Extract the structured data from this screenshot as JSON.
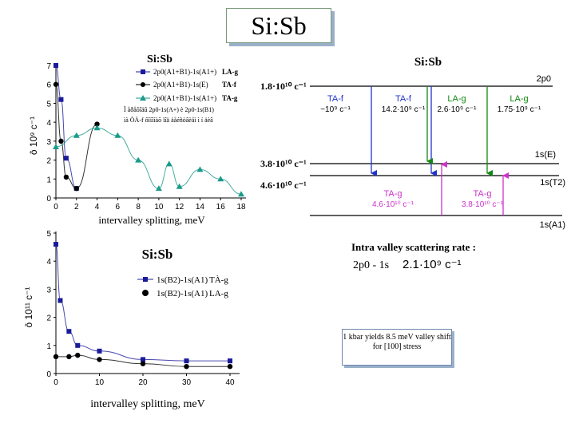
{
  "slide_title": "Si:Sb",
  "top_chart": {
    "title": "Si:Sb",
    "legend": [
      {
        "label": "2p0(A1+B1)-1s(A1+)",
        "tag": "LA-g",
        "marker": "square"
      },
      {
        "label": "2p0(A1+B1)-1s(E)",
        "tag": "TA-f",
        "marker": "circle"
      },
      {
        "label": "2p0(A1+B1)-1s(A1+)",
        "tag": "TA-g",
        "marker": "triangle"
      }
    ],
    "legend_note_1": "Ï åðåõîäû 2p0-1s(A+) è 2p0-1s(B1)",
    "legend_note_2": "ìà ÒÀ-f ôîíîíàõ ïîä äåéñòâèåì ì í äèâ",
    "xlabel": "intervalley splitting, meV",
    "ylabel": "ô 10⁹ c⁻¹",
    "x_ticks": [
      "0",
      "2",
      "4",
      "6",
      "8",
      "10",
      "12",
      "14",
      "16",
      "18"
    ],
    "y_ticks": [
      "0",
      "1",
      "2",
      "3",
      "4",
      "5",
      "6",
      "7"
    ]
  },
  "energy_diagram": {
    "title": "Si:Sb",
    "levels": {
      "top": "2p0",
      "e": "1s(E)",
      "t2": "1s(T2)",
      "a1": "1s(A1)"
    },
    "left_values": {
      "top": "1.8·10¹⁰ c⁻¹",
      "e": "3.8·10¹⁰ c⁻¹",
      "t2": "4.6·10¹⁰ c⁻¹"
    },
    "transitions_down": [
      {
        "mode": "TA-f",
        "rate": "~10⁹ c⁻¹",
        "color": "#2233cc"
      },
      {
        "mode": "TA-f",
        "rate": "14.2·10⁹ c⁻¹",
        "color": "#2233cc"
      },
      {
        "mode": "LA-g",
        "rate": "2.6·10⁹ c⁻¹",
        "color": "#118811"
      },
      {
        "mode": "LA-g",
        "rate": "1.75·10⁹ c⁻¹",
        "color": "#118811"
      }
    ],
    "transitions_up": [
      {
        "mode": "TA-g",
        "rate": "4.6·10¹⁰ c⁻¹",
        "color": "#cc33cc"
      },
      {
        "mode": "TA-g",
        "rate": "3.8·10¹⁰ c⁻¹",
        "color": "#cc33cc"
      }
    ],
    "intra_title": "Intra valley scattering rate :",
    "intra_transition": "2p0 - 1s",
    "intra_rate": "2.1·10⁹ c⁻¹"
  },
  "bottom_chart": {
    "title": "Si:Sb",
    "legend": [
      {
        "label": "1s(B2)-1s(A1)",
        "tag": "TÀ-g",
        "marker": "square"
      },
      {
        "label": "1s(B2)-1s(A1)",
        "tag": "LA-g",
        "marker": "circle"
      }
    ],
    "xlabel": "intervalley splitting, meV",
    "ylabel": "ô 10¹¹ c⁻¹",
    "x_ticks": [
      "0",
      "10",
      "20",
      "30",
      "40"
    ],
    "y_ticks": [
      "0",
      "1",
      "2",
      "3",
      "4",
      "5"
    ]
  },
  "note": "1 kbar yields 8.5 meV valley shift for [100] stress",
  "chart_data": [
    {
      "type": "scatter",
      "title": "Si:Sb",
      "xlabel": "intervalley splitting, meV",
      "ylabel": "ô 10⁹ c⁻¹",
      "xlim": [
        0,
        18
      ],
      "ylim": [
        0,
        7
      ],
      "series": [
        {
          "name": "LA-g",
          "marker": "square",
          "color": "#1a1a9a",
          "x": [
            0,
            0.5,
            1,
            2
          ],
          "y": [
            7.0,
            5.2,
            2.1,
            0.5
          ]
        },
        {
          "name": "TA-f",
          "marker": "circle",
          "color": "#000000",
          "x": [
            0,
            0.5,
            1,
            2,
            4
          ],
          "y": [
            6.0,
            3.0,
            1.1,
            0.5,
            3.9
          ]
        },
        {
          "name": "TA-g",
          "marker": "triangle",
          "color": "#1a9a8a",
          "x": [
            0,
            2,
            4,
            6,
            8,
            10,
            11,
            12,
            14,
            16,
            18
          ],
          "y": [
            2.7,
            3.3,
            3.7,
            3.3,
            2.0,
            0.5,
            1.8,
            0.6,
            1.5,
            1.0,
            0.2
          ]
        }
      ]
    },
    {
      "type": "scatter",
      "title": "Si:Sb",
      "xlabel": "intervalley splitting, meV",
      "ylabel": "ô 10¹¹ c⁻¹",
      "xlim": [
        0,
        40
      ],
      "ylim": [
        0,
        5
      ],
      "series": [
        {
          "name": "TÀ-g",
          "marker": "square",
          "color": "#1a1a9a",
          "x": [
            0,
            1,
            3,
            5,
            10,
            20,
            30,
            40
          ],
          "y": [
            4.6,
            2.6,
            1.5,
            1.0,
            0.8,
            0.5,
            0.45,
            0.45
          ]
        },
        {
          "name": "LA-g",
          "marker": "circle",
          "color": "#000000",
          "x": [
            0,
            3,
            5,
            10,
            20,
            30,
            40
          ],
          "y": [
            0.6,
            0.6,
            0.65,
            0.5,
            0.35,
            0.25,
            0.25
          ]
        }
      ]
    }
  ]
}
